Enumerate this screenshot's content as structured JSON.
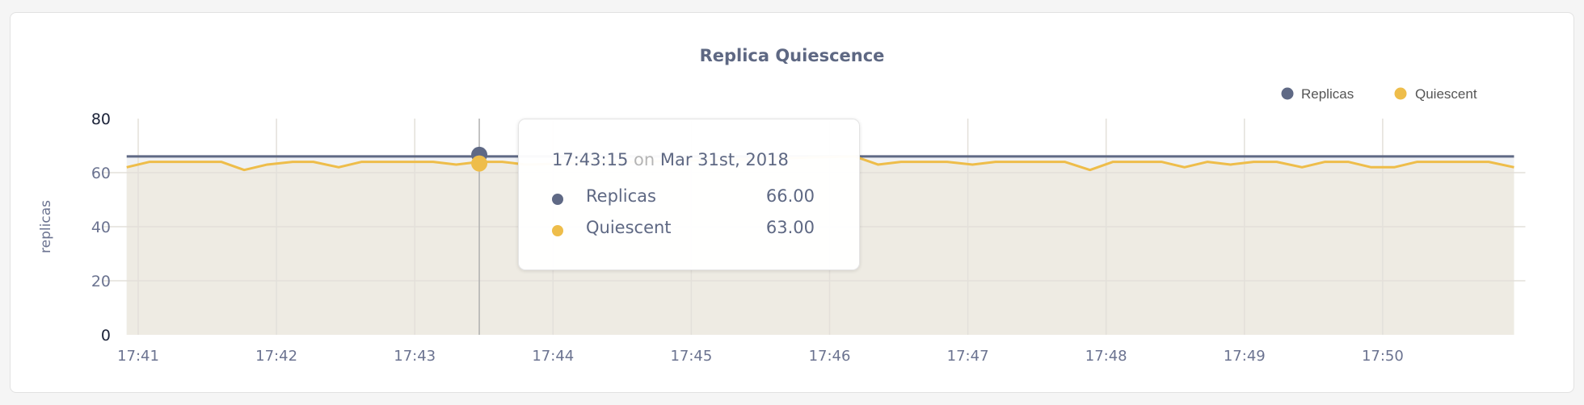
{
  "colors": {
    "replicas": "#5f6985",
    "quiescent": "#eebd4a",
    "replicas_fill": "#eff1f4",
    "quiescent_fill": "#eeebe3",
    "grid": "#e3e0da"
  },
  "tooltip": {
    "time": "17:43:15",
    "on": "on",
    "date": "Mar 31st, 2018",
    "rows": [
      {
        "label": "Replicas",
        "value": "66.00"
      },
      {
        "label": "Quiescent",
        "value": "63.00"
      }
    ]
  },
  "chart_data": {
    "type": "area",
    "title": "Replica Quiescence",
    "ylabel": "replicas",
    "xlabel": "",
    "ylim": [
      0,
      80
    ],
    "yticks": [
      "0",
      "20",
      "40",
      "60",
      "80"
    ],
    "xticks": [
      "17:41",
      "17:42",
      "17:43",
      "17:44",
      "17:45",
      "17:46",
      "17:47",
      "17:48",
      "17:49",
      "17:50"
    ],
    "xlim": [
      "17:40:55",
      "17:50:57"
    ],
    "grid": true,
    "legend_position": "top-right",
    "hover_time": "17:43:28",
    "series": [
      {
        "name": "Replicas",
        "color": "#5f6985",
        "points": [
          [
            "17:40:55",
            66
          ],
          [
            "17:50:57",
            66
          ]
        ]
      },
      {
        "name": "Quiescent",
        "color": "#eebd4a",
        "points": [
          [
            "17:40:55",
            62
          ],
          [
            "17:41:05",
            64
          ],
          [
            "17:41:36",
            64
          ],
          [
            "17:41:46",
            61
          ],
          [
            "17:41:56",
            63
          ],
          [
            "17:42:07",
            64
          ],
          [
            "17:42:16",
            64
          ],
          [
            "17:42:27",
            62
          ],
          [
            "17:42:37",
            64
          ],
          [
            "17:43:08",
            64
          ],
          [
            "17:43:18",
            63
          ],
          [
            "17:43:28",
            64
          ],
          [
            "17:43:38",
            64
          ],
          [
            "17:43:48",
            63
          ],
          [
            "17:46:11",
            66
          ],
          [
            "17:46:21",
            63
          ],
          [
            "17:46:31",
            64
          ],
          [
            "17:46:51",
            64
          ],
          [
            "17:47:02",
            63
          ],
          [
            "17:47:12",
            64
          ],
          [
            "17:47:42",
            64
          ],
          [
            "17:47:53",
            61
          ],
          [
            "17:48:03",
            64
          ],
          [
            "17:48:24",
            64
          ],
          [
            "17:48:34",
            62
          ],
          [
            "17:48:44",
            64
          ],
          [
            "17:48:54",
            63
          ],
          [
            "17:49:04",
            64
          ],
          [
            "17:49:14",
            64
          ],
          [
            "17:49:25",
            62
          ],
          [
            "17:49:35",
            64
          ],
          [
            "17:49:45",
            64
          ],
          [
            "17:49:55",
            62
          ],
          [
            "17:50:05",
            62
          ],
          [
            "17:50:15",
            64
          ],
          [
            "17:50:46",
            64
          ],
          [
            "17:50:57",
            62
          ]
        ]
      }
    ]
  }
}
